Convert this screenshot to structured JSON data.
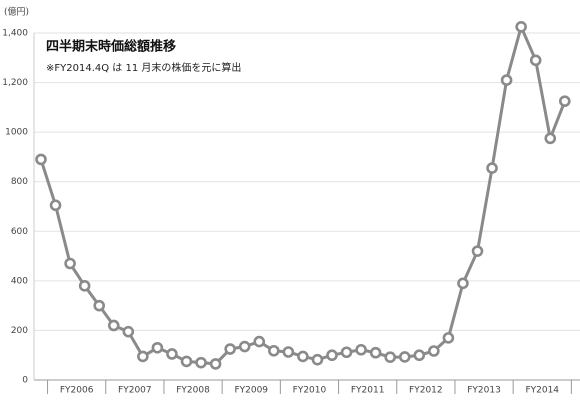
{
  "chart_data": {
    "type": "line",
    "title": "四半期末時価総額推移",
    "subtitle": "※FY2014.4Q は 11 月末の株価を元に算出",
    "y_unit": "(億円)",
    "categories": [
      null,
      null,
      null,
      null,
      null,
      null,
      null,
      null,
      null,
      null,
      null,
      null,
      null,
      null,
      null,
      null,
      null,
      null,
      null,
      null,
      null,
      null,
      null,
      null,
      null,
      null,
      null,
      null,
      null,
      null,
      null,
      null,
      null,
      null,
      null,
      null,
      null
    ],
    "groups": [
      "FY2006",
      "FY2007",
      "FY2008",
      "FY2009",
      "FY2010",
      "FY2011",
      "FY2012",
      "FY2013",
      "FY2014"
    ],
    "series": [
      {
        "color": "#8a8a8a",
        "values": [
          890,
          705,
          470,
          380,
          300,
          220,
          195,
          95,
          130,
          105,
          75,
          70,
          65,
          125,
          135,
          155,
          118,
          113,
          95,
          82,
          100,
          112,
          122,
          110,
          92,
          93,
          100,
          117,
          170,
          390,
          520,
          855,
          1210,
          1425,
          1290,
          975,
          1125
        ]
      }
    ],
    "ylim": [
      0,
      1400
    ],
    "yticks": [
      0,
      200,
      400,
      600,
      800,
      1000,
      {
        "value": 1200,
        "label": "1,200"
      },
      {
        "value": 1400,
        "label": "1,400"
      }
    ],
    "grid": true
  }
}
